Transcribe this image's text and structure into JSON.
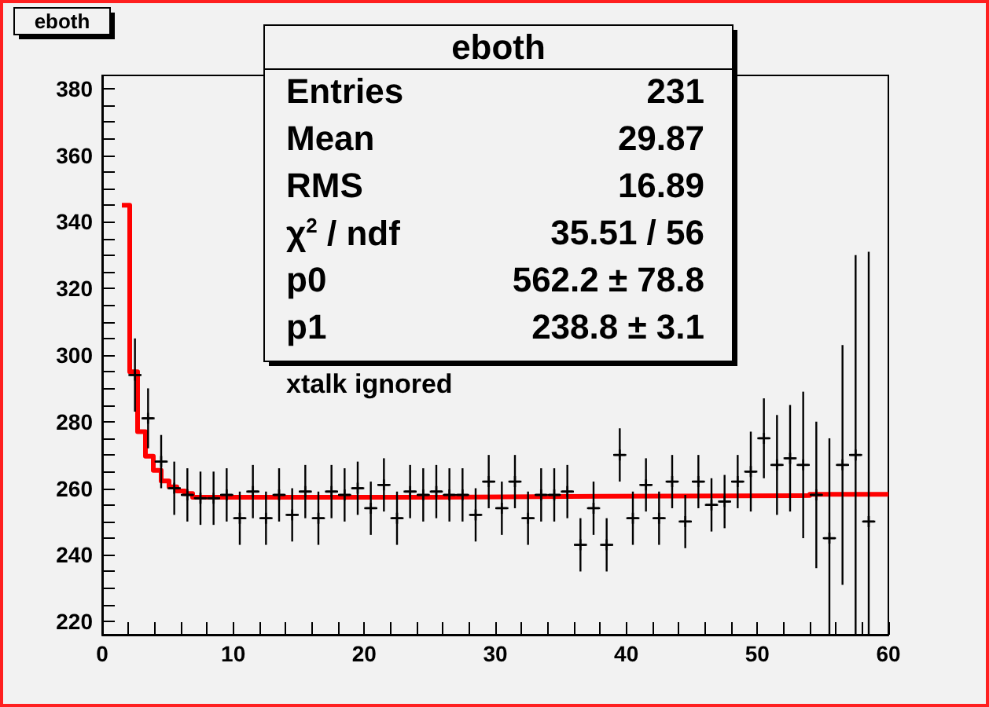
{
  "chart_data": {
    "type": "scatter",
    "title": "eboth",
    "xlim": [
      0,
      60
    ],
    "ylim": [
      216,
      384
    ],
    "xticks": [
      0,
      {
        "value": 2,
        "label": null
      },
      {
        "value": 4,
        "label": null
      },
      {
        "value": 6,
        "label": null
      },
      {
        "value": 8,
        "label": null
      },
      10,
      {
        "value": 12,
        "label": null
      },
      {
        "value": 14,
        "label": null
      },
      {
        "value": 16,
        "label": null
      },
      {
        "value": 18,
        "label": null
      },
      20,
      {
        "value": 22,
        "label": null
      },
      {
        "value": 24,
        "label": null
      },
      {
        "value": 26,
        "label": null
      },
      {
        "value": 28,
        "label": null
      },
      30,
      {
        "value": 32,
        "label": null
      },
      {
        "value": 34,
        "label": null
      },
      {
        "value": 36,
        "label": null
      },
      {
        "value": 38,
        "label": null
      },
      40,
      {
        "value": 42,
        "label": null
      },
      {
        "value": 44,
        "label": null
      },
      {
        "value": 46,
        "label": null
      },
      {
        "value": 48,
        "label": null
      },
      50,
      {
        "value": 52,
        "label": null
      },
      {
        "value": 54,
        "label": null
      },
      {
        "value": 56,
        "label": null
      },
      {
        "value": 58,
        "label": null
      },
      60
    ],
    "yticks": [
      220,
      {
        "value": 225,
        "label": null
      },
      {
        "value": 230,
        "label": null
      },
      {
        "value": 235,
        "label": null
      },
      240,
      {
        "value": 245,
        "label": null
      },
      {
        "value": 250,
        "label": null
      },
      {
        "value": 255,
        "label": null
      },
      260,
      {
        "value": 265,
        "label": null
      },
      {
        "value": 270,
        "label": null
      },
      {
        "value": 275,
        "label": null
      },
      280,
      {
        "value": 285,
        "label": null
      },
      {
        "value": 290,
        "label": null
      },
      {
        "value": 295,
        "label": null
      },
      300,
      {
        "value": 305,
        "label": null
      },
      {
        "value": 310,
        "label": null
      },
      {
        "value": 315,
        "label": null
      },
      320,
      {
        "value": 325,
        "label": null
      },
      {
        "value": 330,
        "label": null
      },
      {
        "value": 335,
        "label": null
      },
      340,
      {
        "value": 345,
        "label": null
      },
      {
        "value": 350,
        "label": null
      },
      {
        "value": 355,
        "label": null
      },
      360,
      {
        "value": 365,
        "label": null
      },
      {
        "value": 370,
        "label": null
      },
      {
        "value": 375,
        "label": null
      },
      380
    ],
    "grid": false,
    "annotations": [
      "eboth",
      "Entries",
      "231",
      "Mean",
      "29.87",
      "RMS",
      "16.89",
      "χ$^{2}$ / ndf",
      "35.51 / 56",
      "p0",
      "562.2 ± 78.8",
      "p1",
      "238.8 ± 3.1",
      "xtalk ignored"
    ],
    "series": [
      {
        "color": "#000000",
        "marker": "cross",
        "x": [
          2.5,
          3.5,
          4.5,
          5.5,
          6.5,
          7.5,
          8.5,
          9.5,
          10.5,
          11.5,
          12.5,
          13.5,
          14.5,
          15.5,
          16.5,
          17.5,
          18.5,
          19.5,
          20.5,
          21.5,
          22.5,
          23.5,
          24.5,
          25.5,
          26.5,
          27.5,
          28.5,
          29.5,
          30.5,
          31.5,
          32.5,
          33.5,
          34.5,
          35.5,
          36.5,
          37.5,
          38.5,
          39.5,
          40.5,
          41.5,
          42.5,
          43.5,
          44.5,
          45.5,
          46.5,
          47.5,
          48.5,
          49.5,
          50.5,
          51.5,
          52.5,
          53.5,
          54.5,
          55.5,
          56.5,
          57.5,
          58.5
        ],
        "values": [
          294,
          281,
          268,
          260,
          258,
          257,
          257,
          258,
          251,
          259,
          251,
          258,
          252,
          259,
          251,
          259,
          258,
          260,
          254,
          261,
          251,
          259,
          258,
          259,
          258,
          258,
          252,
          262,
          254,
          262,
          251,
          258,
          258,
          259,
          243,
          254,
          243,
          270,
          251,
          261,
          251,
          262,
          250,
          262,
          255,
          256,
          262,
          265,
          275,
          267,
          269,
          267,
          258,
          245,
          267,
          270,
          250
        ],
        "errors": [
          11,
          9,
          8,
          8,
          8,
          8,
          8,
          8,
          8,
          8,
          8,
          8,
          8,
          8,
          8,
          8,
          8,
          8,
          8,
          8,
          8,
          8,
          8,
          8,
          8,
          8,
          8,
          8,
          8,
          8,
          8,
          8,
          8,
          8,
          8,
          8,
          8,
          8,
          8,
          8,
          8,
          8,
          8,
          8,
          8,
          8,
          8,
          12,
          12,
          15,
          16,
          22,
          22,
          [
            216,
            275
          ],
          36,
          [
            216,
            330
          ],
          [
            216,
            331
          ]
        ],
        "xerrors": [
          0.5,
          0.5,
          0.5,
          0.5,
          0.5,
          0.5,
          0.5,
          0.5,
          0.5,
          0.5,
          0.5,
          0.5,
          0.5,
          0.5,
          0.5,
          0.5,
          0.5,
          0.5,
          0.5,
          0.5,
          0.5,
          0.5,
          0.5,
          0.5,
          0.5,
          0.5,
          0.5,
          0.5,
          0.5,
          0.5,
          0.5,
          0.5,
          0.5,
          0.5,
          0.5,
          0.5,
          0.5,
          0.5,
          0.5,
          0.5,
          0.5,
          0.5,
          0.5,
          0.5,
          0.5,
          0.5,
          0.5,
          0.5,
          0.5,
          0.5,
          0.5,
          0.5,
          0.5,
          0.5,
          0.5,
          0.5,
          0.5
        ]
      },
      {
        "type": "step",
        "color": "#ff0000",
        "x": [
          1.5,
          2.1,
          2.7,
          3.3,
          3.9,
          4.5,
          5.1,
          5.7,
          6.3,
          6.9,
          25.7,
          38.1,
          54,
          60
        ],
        "values": [
          345,
          295,
          277,
          269.6,
          265.4,
          262.2,
          260.4,
          259.2,
          258.4,
          257.3,
          257.6,
          257.8,
          258.2,
          258.2
        ]
      }
    ]
  }
}
